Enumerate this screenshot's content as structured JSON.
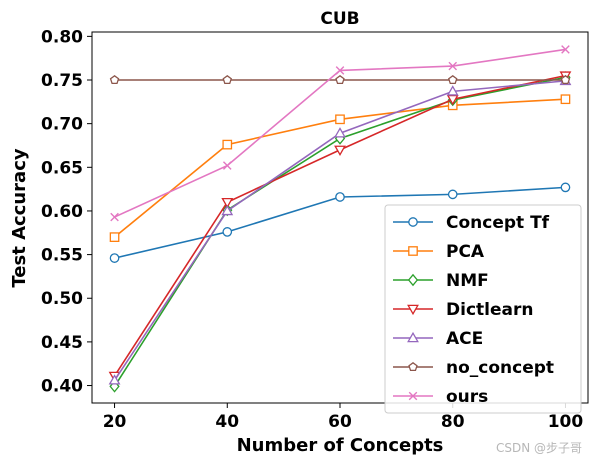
{
  "watermark": "CSDN @步子哥",
  "chart_data": {
    "type": "line",
    "title": "CUB",
    "xlabel": "Number of Concepts",
    "ylabel": "Test Accuracy",
    "x": [
      20,
      40,
      60,
      80,
      100
    ],
    "xticks": [
      "20",
      "40",
      "60",
      "80",
      "100"
    ],
    "xlim": [
      16,
      104
    ],
    "ylim": [
      0.38,
      0.805
    ],
    "yticks": [
      "0.40",
      "0.45",
      "0.50",
      "0.55",
      "0.60",
      "0.65",
      "0.70",
      "0.75",
      "0.80"
    ],
    "grid": false,
    "legend_position": "lower-right",
    "series": [
      {
        "name": "Concept Tf",
        "color": "#1f77b4",
        "marker": "circle",
        "values": [
          0.546,
          0.576,
          0.616,
          0.619,
          0.627
        ]
      },
      {
        "name": "PCA",
        "color": "#ff7f0e",
        "marker": "square",
        "values": [
          0.57,
          0.676,
          0.705,
          0.721,
          0.728
        ]
      },
      {
        "name": "NMF",
        "color": "#2ca02c",
        "marker": "diamond",
        "values": [
          0.399,
          0.601,
          0.683,
          0.727,
          0.753
        ]
      },
      {
        "name": "Dictlearn",
        "color": "#d62728",
        "marker": "triangle-down",
        "values": [
          0.411,
          0.61,
          0.67,
          0.728,
          0.755
        ]
      },
      {
        "name": "ACE",
        "color": "#9467bd",
        "marker": "triangle-up",
        "values": [
          0.406,
          0.6,
          0.689,
          0.737,
          0.749
        ]
      },
      {
        "name": "no_concept",
        "color": "#8c564b",
        "marker": "pentagon",
        "values": [
          0.75,
          0.75,
          0.75,
          0.75,
          0.75
        ]
      },
      {
        "name": "ours",
        "color": "#e377c2",
        "marker": "x",
        "values": [
          0.593,
          0.652,
          0.761,
          0.766,
          0.785
        ]
      }
    ]
  }
}
